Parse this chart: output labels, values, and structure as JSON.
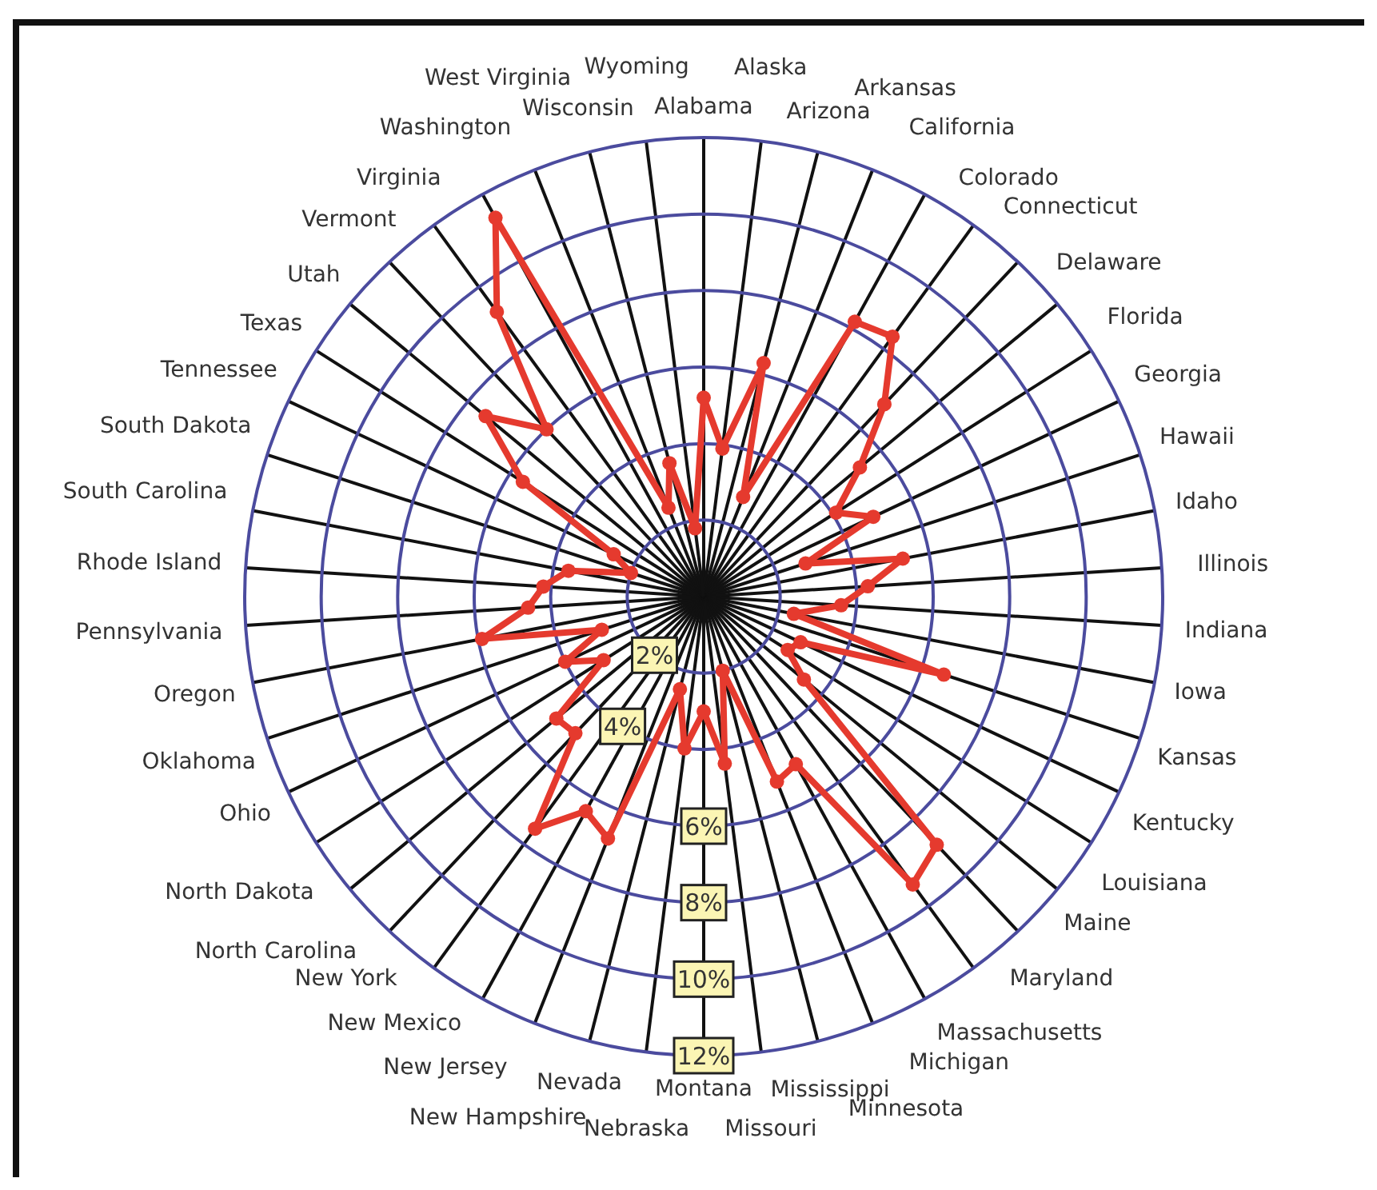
{
  "chart_data": {
    "type": "radar",
    "categories": [
      "Alabama",
      "Alaska",
      "Arizona",
      "Arkansas",
      "California",
      "Colorado",
      "Connecticut",
      "Delaware",
      "Florida",
      "Georgia",
      "Hawaii",
      "Idaho",
      "Illinois",
      "Indiana",
      "Iowa",
      "Kansas",
      "Kentucky",
      "Louisiana",
      "Maine",
      "Maryland",
      "Massachusetts",
      "Michigan",
      "Minnesota",
      "Mississippi",
      "Missouri",
      "Montana",
      "Nebraska",
      "Nevada",
      "New Hampshire",
      "New Jersey",
      "New Mexico",
      "New York",
      "North Carolina",
      "North Dakota",
      "Ohio",
      "Oklahoma",
      "Oregon",
      "Pennsylvania",
      "Rhode Island",
      "South Carolina",
      "South Dakota",
      "Tennessee",
      "Texas",
      "Utah",
      "Vermont",
      "Virginia",
      "Washington",
      "West Virginia",
      "Wisconsin",
      "Wyoming"
    ],
    "series": [
      {
        "color": "#e53a2e",
        "values": [
          5.2,
          3.9,
          6.3,
          2.8,
          8.2,
          8.4,
          6.9,
          5.3,
          4.1,
          4.9,
          2.8,
          5.3,
          4.3,
          3.6,
          2.4,
          6.6,
          2.8,
          2.6,
          3.4,
          8.9,
          9.3,
          5.0,
          5.2,
          2.0,
          4.4,
          3.0,
          4.0,
          2.5,
          6.8,
          6.4,
          7.5,
          4.9,
          5.0,
          3.1,
          4.0,
          2.8,
          5.9,
          4.6,
          4.2,
          3.6,
          2.0,
          2.6,
          5.6,
          7.4,
          6.0,
          9.2,
          11.3,
          2.5,
          3.6,
          1.8
        ]
      }
    ],
    "ylim": [
      0,
      12
    ],
    "yticks": [
      {
        "value": 2,
        "label": "2%"
      },
      {
        "value": 4,
        "label": "4%"
      },
      {
        "value": 6,
        "label": "6%"
      },
      {
        "value": 8,
        "label": "8%"
      },
      {
        "value": 10,
        "label": "10%"
      },
      {
        "value": 12,
        "label": "12%"
      }
    ],
    "grid": true,
    "marker": "circle",
    "line_style": "solid"
  }
}
